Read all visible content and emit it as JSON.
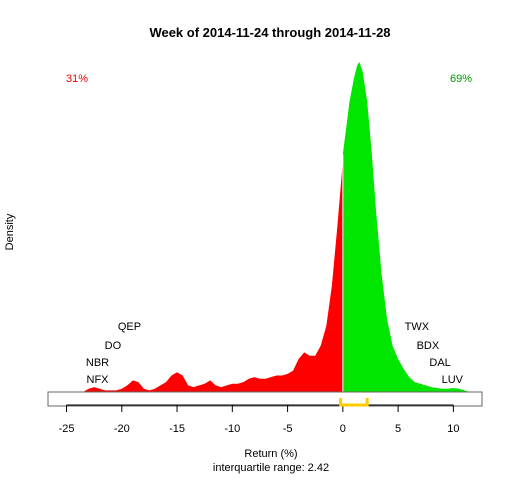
{
  "chart_data": {
    "type": "area",
    "title": "Week of 2014-11-24 through 2014-11-28",
    "xlabel": "Return (%)",
    "ylabel": "Density",
    "subtitle": "interquartile range: 2.42",
    "xlim": [
      -25.5,
      12.5
    ],
    "ylim": [
      0,
      1.0
    ],
    "xticks": [
      -25,
      -20,
      -15,
      -10,
      -5,
      0,
      5,
      10
    ],
    "split_at": 0,
    "negative_share": "31%",
    "positive_share": "69%",
    "negative_color": "#ff0000",
    "positive_color": "#00e600",
    "iqr_color": "#ffcc00",
    "iqr_x": [
      -0.2,
      2.2
    ],
    "density_points": [
      [
        -23.5,
        0.0
      ],
      [
        -23.0,
        0.01
      ],
      [
        -22.5,
        0.015
      ],
      [
        -22.0,
        0.01
      ],
      [
        -21.5,
        0.005
      ],
      [
        -21.0,
        0.005
      ],
      [
        -20.5,
        0.005
      ],
      [
        -20.0,
        0.01
      ],
      [
        -19.5,
        0.02
      ],
      [
        -19.0,
        0.035
      ],
      [
        -18.5,
        0.03
      ],
      [
        -18.0,
        0.01
      ],
      [
        -17.5,
        0.005
      ],
      [
        -17.0,
        0.01
      ],
      [
        -16.5,
        0.02
      ],
      [
        -16.0,
        0.03
      ],
      [
        -15.5,
        0.05
      ],
      [
        -15.0,
        0.06
      ],
      [
        -14.5,
        0.05
      ],
      [
        -14.0,
        0.02
      ],
      [
        -13.5,
        0.015
      ],
      [
        -13.0,
        0.02
      ],
      [
        -12.5,
        0.025
      ],
      [
        -12.0,
        0.035
      ],
      [
        -11.5,
        0.02
      ],
      [
        -11.0,
        0.015
      ],
      [
        -10.5,
        0.02
      ],
      [
        -10.0,
        0.025
      ],
      [
        -9.5,
        0.025
      ],
      [
        -9.0,
        0.03
      ],
      [
        -8.5,
        0.04
      ],
      [
        -8.0,
        0.045
      ],
      [
        -7.5,
        0.04
      ],
      [
        -7.0,
        0.04
      ],
      [
        -6.5,
        0.045
      ],
      [
        -6.0,
        0.05
      ],
      [
        -5.5,
        0.05
      ],
      [
        -5.0,
        0.055
      ],
      [
        -4.5,
        0.065
      ],
      [
        -4.0,
        0.1
      ],
      [
        -3.5,
        0.12
      ],
      [
        -3.0,
        0.11
      ],
      [
        -2.5,
        0.11
      ],
      [
        -2.0,
        0.14
      ],
      [
        -1.5,
        0.2
      ],
      [
        -1.0,
        0.32
      ],
      [
        -0.5,
        0.5
      ],
      [
        -0.05,
        0.68
      ],
      [
        0.0,
        0.72
      ],
      [
        0.3,
        0.8
      ],
      [
        0.6,
        0.88
      ],
      [
        1.0,
        0.95
      ],
      [
        1.3,
        0.99
      ],
      [
        1.5,
        1.0
      ],
      [
        1.8,
        0.97
      ],
      [
        2.2,
        0.88
      ],
      [
        2.6,
        0.73
      ],
      [
        3.0,
        0.55
      ],
      [
        3.5,
        0.36
      ],
      [
        4.0,
        0.22
      ],
      [
        4.5,
        0.14
      ],
      [
        5.0,
        0.1
      ],
      [
        5.5,
        0.07
      ],
      [
        6.0,
        0.045
      ],
      [
        6.5,
        0.03
      ],
      [
        7.0,
        0.025
      ],
      [
        7.5,
        0.02
      ],
      [
        8.0,
        0.015
      ],
      [
        8.5,
        0.012
      ],
      [
        9.0,
        0.01
      ],
      [
        9.5,
        0.01
      ],
      [
        10.0,
        0.012
      ],
      [
        10.5,
        0.01
      ],
      [
        11.0,
        0.005
      ],
      [
        11.5,
        0.0
      ]
    ],
    "annotations": [
      {
        "text": "QEP",
        "x": -19.3,
        "side": "left",
        "row": 0
      },
      {
        "text": "DO",
        "x": -20.8,
        "side": "left",
        "row": 1
      },
      {
        "text": "NBR",
        "x": -22.2,
        "side": "left",
        "row": 2
      },
      {
        "text": "NFX",
        "x": -22.2,
        "side": "left",
        "row": 3
      },
      {
        "text": "TWX",
        "x": 6.7,
        "side": "right",
        "row": 0
      },
      {
        "text": "BDX",
        "x": 7.7,
        "side": "right",
        "row": 1
      },
      {
        "text": "DAL",
        "x": 8.8,
        "side": "right",
        "row": 2
      },
      {
        "text": "LUV",
        "x": 9.9,
        "side": "right",
        "row": 3
      }
    ]
  }
}
